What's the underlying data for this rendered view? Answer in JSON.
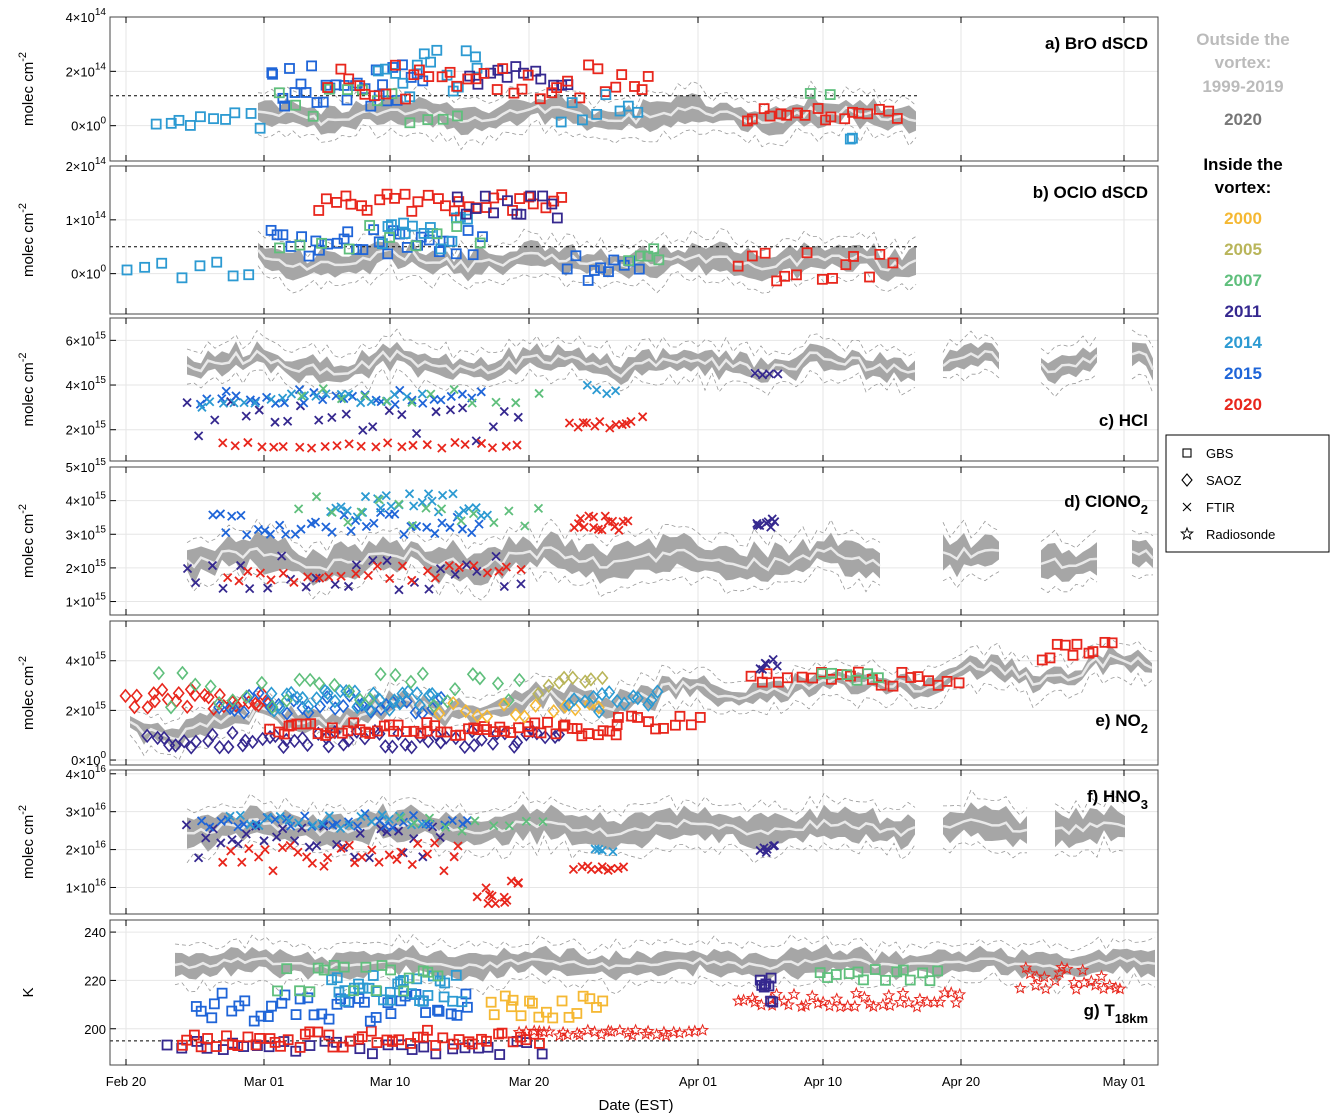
{
  "figure": {
    "xlabel": "Date (EST)",
    "x_ticks": [
      "Feb 20",
      "Mar 01",
      "Mar 10",
      "Mar 20",
      "Apr 01",
      "Apr 10",
      "Apr 20",
      "May 01"
    ]
  },
  "legend": {
    "outside_title": "Outside the vortex:",
    "outside_years": "1999-2019",
    "outside_2020": "2020",
    "inside_title": "Inside the vortex:",
    "years": [
      {
        "label": "2000",
        "color": "#f5b833"
      },
      {
        "label": "2005",
        "color": "#b9b55a"
      },
      {
        "label": "2007",
        "color": "#5fbf7c"
      },
      {
        "label": "2011",
        "color": "#35288f"
      },
      {
        "label": "2014",
        "color": "#2c9ad2"
      },
      {
        "label": "2015",
        "color": "#1f65d8"
      },
      {
        "label": "2020",
        "color": "#e8261c"
      }
    ],
    "outside_color": "#bbbbbb",
    "outside_2020_color": "#777777",
    "instruments": [
      {
        "label": "GBS",
        "marker": "square"
      },
      {
        "label": "SAOZ",
        "marker": "diamond"
      },
      {
        "label": "FTIR",
        "marker": "cross"
      },
      {
        "label": "Radiosonde",
        "marker": "star"
      }
    ]
  },
  "chart_data": [
    {
      "id": "a",
      "type": "scatter",
      "title": "a) BrO dSCD",
      "ylabel": "molec cm",
      "ylabel_sup": "-2",
      "y_ticks": [
        {
          "mant": "0",
          "exp": "0"
        },
        {
          "mant": "2",
          "exp": "14"
        },
        {
          "mant": "4",
          "exp": "14"
        }
      ],
      "ylim": [
        -130000000000000.0,
        400000000000000.0
      ],
      "threshold": 110000000000000.0
    },
    {
      "id": "b",
      "type": "scatter",
      "title": "b) OClO dSCD",
      "ylabel": "molec cm",
      "ylabel_sup": "-2",
      "y_ticks": [
        {
          "mant": "0",
          "exp": "0"
        },
        {
          "mant": "1",
          "exp": "14"
        },
        {
          "mant": "2",
          "exp": "14"
        }
      ],
      "ylim": [
        -75000000000000.0,
        200000000000000.0
      ],
      "threshold": 50000000000000.0
    },
    {
      "id": "c",
      "type": "scatter",
      "title": "c) HCl",
      "ylabel": "molec cm",
      "ylabel_sup": "-2",
      "y_ticks": [
        {
          "mant": "2",
          "exp": "15"
        },
        {
          "mant": "4",
          "exp": "15"
        },
        {
          "mant": "6",
          "exp": "15"
        }
      ],
      "ylim": [
        600000000000000.0,
        7000000000000000.0
      ]
    },
    {
      "id": "d",
      "type": "scatter",
      "title": "d) ClONO",
      "title_sub": "2",
      "ylabel": "molec cm",
      "ylabel_sup": "-2",
      "y_ticks": [
        {
          "mant": "1",
          "exp": "15"
        },
        {
          "mant": "2",
          "exp": "15"
        },
        {
          "mant": "3",
          "exp": "15"
        },
        {
          "mant": "4",
          "exp": "15"
        },
        {
          "mant": "5",
          "exp": "15"
        }
      ],
      "ylim": [
        600000000000000.0,
        5000000000000000.0
      ]
    },
    {
      "id": "e",
      "type": "scatter",
      "title": "e) NO",
      "title_sub": "2",
      "ylabel": "molec cm",
      "ylabel_sup": "-2",
      "y_ticks": [
        {
          "mant": "0",
          "exp": "0"
        },
        {
          "mant": "2",
          "exp": "15"
        },
        {
          "mant": "4",
          "exp": "15"
        }
      ],
      "ylim": [
        -200000000000000.0,
        5600000000000000.0
      ]
    },
    {
      "id": "f",
      "type": "scatter",
      "title": "f) HNO",
      "title_sub": "3",
      "ylabel": "molec cm",
      "ylabel_sup": "-2",
      "y_ticks": [
        {
          "mant": "1",
          "exp": "16"
        },
        {
          "mant": "2",
          "exp": "16"
        },
        {
          "mant": "3",
          "exp": "16"
        },
        {
          "mant": "4",
          "exp": "16"
        }
      ],
      "ylim": [
        3000000000000000.0,
        4.1e+16
      ]
    },
    {
      "id": "g",
      "type": "scatter",
      "title": "g) T",
      "title_sub": "18km",
      "ylabel": "K",
      "y_ticks": [
        {
          "mant": "200",
          "exp": ""
        },
        {
          "mant": "220",
          "exp": ""
        },
        {
          "mant": "240",
          "exp": ""
        }
      ],
      "ylim": [
        185,
        245
      ],
      "threshold": 195
    }
  ]
}
